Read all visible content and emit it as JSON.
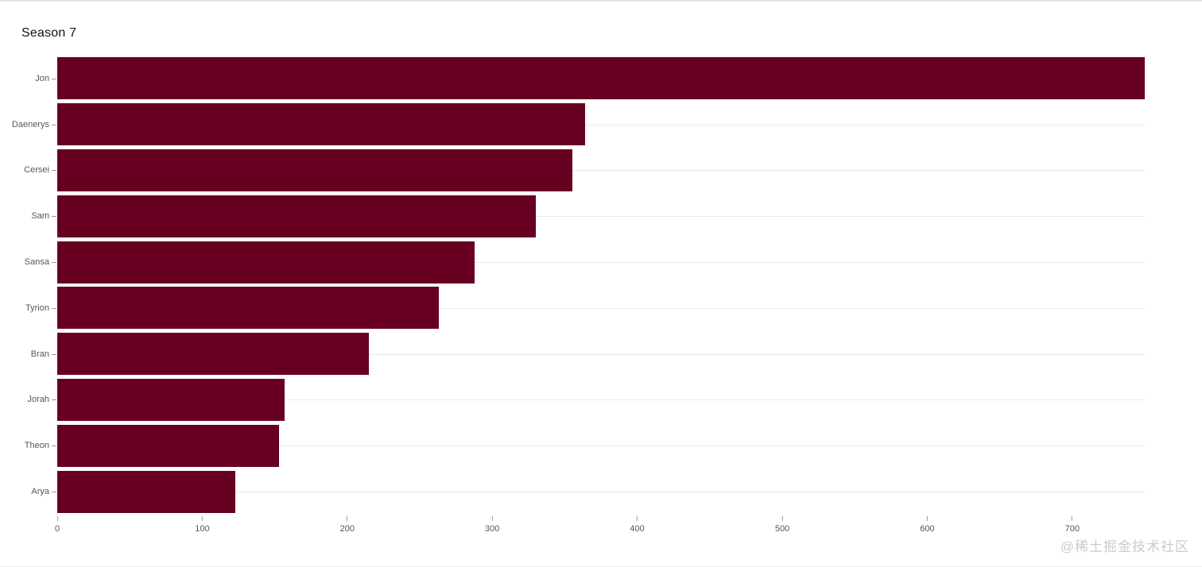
{
  "title": "Season 7",
  "watermark": "@稀土掘金技术社区",
  "colors": {
    "bar": "#670020",
    "grid": "#e8e8e8",
    "tick": "#9a9a9a",
    "label": "#565656",
    "title": "#111111",
    "watermark": "#cbcbcb"
  },
  "chart_data": {
    "type": "bar",
    "orientation": "horizontal",
    "title": "Season 7",
    "categories": [
      "Jon",
      "Daenerys",
      "Cersei",
      "Sam",
      "Sansa",
      "Tyrion",
      "Bran",
      "Jorah",
      "Theon",
      "Arya"
    ],
    "values": [
      750,
      364,
      355,
      330,
      288,
      263,
      215,
      157,
      153,
      123
    ],
    "xlabel": "",
    "ylabel": "",
    "x_ticks": [
      0,
      100,
      200,
      300,
      400,
      500,
      600,
      700
    ],
    "xlim": [
      0,
      750
    ],
    "grid": true,
    "legend": false
  }
}
